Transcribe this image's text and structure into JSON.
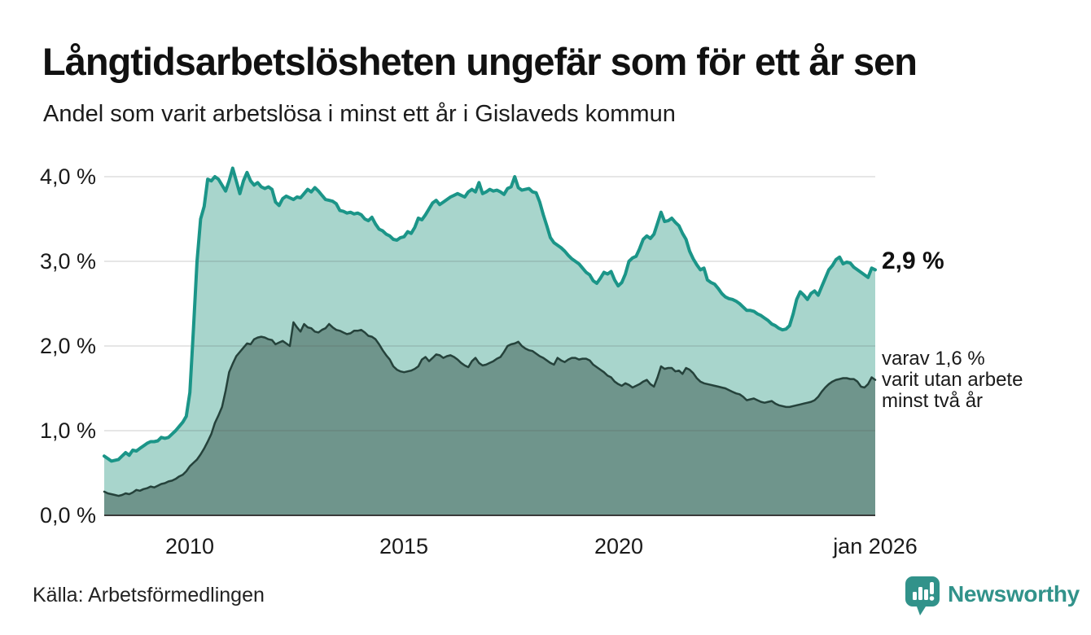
{
  "header": {
    "title": "Långtidsarbetslösheten ungefär som för ett år sen",
    "subtitle": "Andel som varit arbetslösa i minst ett år i Gislaveds kommun"
  },
  "annotations": {
    "end_value_main": "2,9 %",
    "end_note": "varav 1,6 %\nvarit utan arbete\nminst två år"
  },
  "footer": {
    "source": "Källa: Arbetsförmedlingen",
    "brand": "Newsworthy"
  },
  "colors": {
    "series1_line": "#1b9588",
    "series1_fill": "#a8d5cc",
    "series2_line": "#25423b",
    "series2_fill": "#6f958c",
    "gridline": "rgba(70,70,70,0.18)",
    "axis": "#3a3a3a",
    "brand_teal": "#31928a",
    "text": "#1a1a1a"
  },
  "chart_data": {
    "type": "area",
    "title": "Långtidsarbetslösheten ungefär som för ett år sen",
    "subtitle": "Andel som varit arbetslösa i minst ett år i Gislaveds kommun",
    "x": {
      "unit": "month",
      "from": "2008-01",
      "to": "2026-01"
    },
    "ylim": [
      0,
      4.2
    ],
    "grid": true,
    "y_tick_values": [
      4,
      3,
      2,
      1,
      0
    ],
    "y_tick_labels": [
      "4,0 %",
      "3,0 %",
      "2,0 %",
      "1,0 %",
      "0,0 %"
    ],
    "x_tick_labels": [
      "2010",
      "2015",
      "2020",
      "jan 2026"
    ],
    "x_tick_month_indices": [
      24,
      84,
      144,
      216
    ],
    "series": [
      {
        "name": "Andel arbetslösa minst ett år",
        "end_label": "2,9 %",
        "line_color": "#1b9588",
        "fill_color": "#a8d5cc",
        "values": [
          0.7,
          0.67,
          0.64,
          0.65,
          0.66,
          0.7,
          0.74,
          0.71,
          0.77,
          0.76,
          0.79,
          0.82,
          0.85,
          0.87,
          0.87,
          0.88,
          0.92,
          0.91,
          0.92,
          0.96,
          1.0,
          1.05,
          1.1,
          1.17,
          1.45,
          2.2,
          3.0,
          3.5,
          3.65,
          3.97,
          3.95,
          4.0,
          3.97,
          3.9,
          3.83,
          3.95,
          4.1,
          3.95,
          3.8,
          3.95,
          4.05,
          3.95,
          3.9,
          3.93,
          3.88,
          3.86,
          3.88,
          3.85,
          3.7,
          3.66,
          3.74,
          3.77,
          3.75,
          3.73,
          3.76,
          3.75,
          3.8,
          3.85,
          3.82,
          3.87,
          3.83,
          3.78,
          3.73,
          3.72,
          3.71,
          3.68,
          3.6,
          3.59,
          3.57,
          3.58,
          3.56,
          3.57,
          3.55,
          3.5,
          3.48,
          3.52,
          3.44,
          3.38,
          3.36,
          3.32,
          3.3,
          3.26,
          3.25,
          3.28,
          3.29,
          3.35,
          3.33,
          3.4,
          3.51,
          3.49,
          3.55,
          3.62,
          3.69,
          3.72,
          3.67,
          3.7,
          3.73,
          3.76,
          3.78,
          3.8,
          3.78,
          3.76,
          3.82,
          3.85,
          3.82,
          3.93,
          3.8,
          3.82,
          3.85,
          3.83,
          3.84,
          3.82,
          3.79,
          3.86,
          3.88,
          4.0,
          3.87,
          3.84,
          3.85,
          3.86,
          3.82,
          3.81,
          3.7,
          3.55,
          3.42,
          3.28,
          3.22,
          3.19,
          3.16,
          3.12,
          3.07,
          3.03,
          3.0,
          2.97,
          2.92,
          2.87,
          2.84,
          2.77,
          2.74,
          2.8,
          2.87,
          2.85,
          2.88,
          2.78,
          2.71,
          2.75,
          2.85,
          3.0,
          3.04,
          3.06,
          3.15,
          3.26,
          3.3,
          3.27,
          3.32,
          3.45,
          3.58,
          3.47,
          3.48,
          3.51,
          3.46,
          3.42,
          3.33,
          3.26,
          3.12,
          3.03,
          2.96,
          2.9,
          2.92,
          2.78,
          2.75,
          2.73,
          2.68,
          2.62,
          2.58,
          2.56,
          2.55,
          2.53,
          2.5,
          2.46,
          2.42,
          2.42,
          2.41,
          2.38,
          2.36,
          2.33,
          2.3,
          2.26,
          2.24,
          2.21,
          2.19,
          2.2,
          2.24,
          2.38,
          2.55,
          2.64,
          2.6,
          2.55,
          2.62,
          2.65,
          2.6,
          2.7,
          2.8,
          2.9,
          2.95,
          3.02,
          3.05,
          2.97,
          2.99,
          2.98,
          2.93,
          2.9,
          2.87,
          2.84,
          2.81,
          2.92,
          2.9
        ]
      },
      {
        "name": "varav utan arbete minst två år",
        "end_label": "1,6 %",
        "line_color": "#25423b",
        "fill_color": "#6f958c",
        "values": [
          0.28,
          0.26,
          0.25,
          0.24,
          0.23,
          0.24,
          0.26,
          0.25,
          0.27,
          0.3,
          0.29,
          0.31,
          0.32,
          0.34,
          0.33,
          0.35,
          0.37,
          0.38,
          0.4,
          0.41,
          0.43,
          0.46,
          0.48,
          0.52,
          0.58,
          0.62,
          0.66,
          0.72,
          0.79,
          0.87,
          0.96,
          1.09,
          1.18,
          1.28,
          1.47,
          1.69,
          1.79,
          1.88,
          1.93,
          1.98,
          2.03,
          2.02,
          2.08,
          2.1,
          2.11,
          2.1,
          2.08,
          2.07,
          2.02,
          2.04,
          2.06,
          2.03,
          2.0,
          2.28,
          2.22,
          2.17,
          2.26,
          2.22,
          2.21,
          2.17,
          2.16,
          2.19,
          2.21,
          2.26,
          2.22,
          2.19,
          2.18,
          2.16,
          2.14,
          2.15,
          2.18,
          2.18,
          2.19,
          2.16,
          2.12,
          2.11,
          2.08,
          2.02,
          1.95,
          1.89,
          1.84,
          1.76,
          1.72,
          1.7,
          1.69,
          1.7,
          1.71,
          1.73,
          1.76,
          1.84,
          1.87,
          1.82,
          1.86,
          1.9,
          1.89,
          1.86,
          1.88,
          1.89,
          1.87,
          1.84,
          1.8,
          1.77,
          1.75,
          1.82,
          1.86,
          1.8,
          1.77,
          1.78,
          1.8,
          1.82,
          1.85,
          1.87,
          1.93,
          2.0,
          2.02,
          2.03,
          2.05,
          2.0,
          1.97,
          1.95,
          1.94,
          1.91,
          1.88,
          1.86,
          1.83,
          1.8,
          1.78,
          1.86,
          1.83,
          1.81,
          1.84,
          1.86,
          1.86,
          1.84,
          1.85,
          1.85,
          1.83,
          1.78,
          1.75,
          1.72,
          1.69,
          1.65,
          1.63,
          1.58,
          1.55,
          1.53,
          1.56,
          1.54,
          1.51,
          1.53,
          1.55,
          1.58,
          1.6,
          1.55,
          1.52,
          1.63,
          1.76,
          1.73,
          1.74,
          1.74,
          1.7,
          1.71,
          1.67,
          1.74,
          1.72,
          1.68,
          1.62,
          1.58,
          1.56,
          1.55,
          1.54,
          1.53,
          1.52,
          1.51,
          1.5,
          1.48,
          1.46,
          1.44,
          1.43,
          1.4,
          1.36,
          1.37,
          1.38,
          1.36,
          1.34,
          1.33,
          1.34,
          1.35,
          1.32,
          1.3,
          1.29,
          1.28,
          1.28,
          1.29,
          1.3,
          1.31,
          1.32,
          1.33,
          1.34,
          1.36,
          1.4,
          1.46,
          1.51,
          1.55,
          1.58,
          1.6,
          1.61,
          1.62,
          1.62,
          1.61,
          1.61,
          1.58,
          1.52,
          1.51,
          1.55,
          1.63,
          1.6
        ]
      }
    ]
  }
}
